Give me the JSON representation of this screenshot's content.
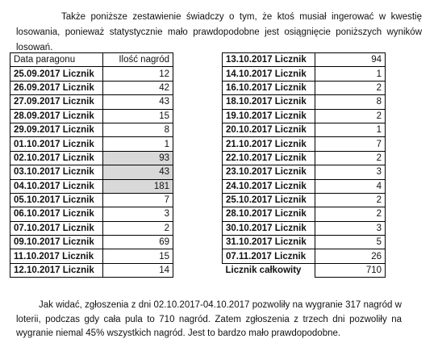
{
  "intro": "Także poniższe zestawienie świadczy o tym, że ktoś musiał ingerować w kwestię losowania, ponieważ statystycznie mało prawdopodobne jest osiągnięcie poniższych wyników losowań.",
  "conclusion": "Jak widać, zgłoszenia z dni 02.10.2017-04.10.2017 pozwoliły na wygranie 317 nagród w loterii, podczas gdy cała pula to 710 nagród. Zatem zgłoszenia z trzech dni pozwoliły na wygranie niemal 45% wszystkich nagród. Jest to bardzo mało prawdopodobne.",
  "tables": [
    {
      "header": [
        "Data paragonu",
        "Ilość nagród"
      ],
      "rows": [
        [
          "25.09.2017 Licznik",
          12
        ],
        [
          "26.09.2017 Licznik",
          42
        ],
        [
          "27.09.2017 Licznik",
          43
        ],
        [
          "28.09.2017 Licznik",
          15
        ],
        [
          "29.09.2017 Licznik",
          8
        ],
        [
          "01.10.2017 Licznik",
          1
        ],
        [
          "02.10.2017 Licznik",
          93
        ],
        [
          "03.10.2017 Licznik",
          43
        ],
        [
          "04.10.2017 Licznik",
          181
        ],
        [
          "05.10.2017 Licznik",
          7
        ],
        [
          "06.10.2017 Licznik",
          3
        ],
        [
          "07.10.2017 Licznik",
          2
        ],
        [
          "09.10.2017 Licznik",
          69
        ],
        [
          "11.10.2017 Licznik",
          15
        ],
        [
          "12.10.2017 Licznik",
          14
        ]
      ]
    },
    {
      "rows": [
        [
          "13.10.2017 Licznik",
          94
        ],
        [
          "14.10.2017 Licznik",
          1
        ],
        [
          "16.10.2017 Licznik",
          2
        ],
        [
          "18.10.2017 Licznik",
          8
        ],
        [
          "19.10.2017 Licznik",
          2
        ],
        [
          "20.10.2017 Licznik",
          1
        ],
        [
          "21.10.2017 Licznik",
          7
        ],
        [
          "22.10.2017 Licznik",
          2
        ],
        [
          "23.10.2017 Licznik",
          3
        ],
        [
          "24.10.2017 Licznik",
          4
        ],
        [
          "25.10.2017 Licznik",
          2
        ],
        [
          "28.10.2017 Licznik",
          2
        ],
        [
          "30.10.2017 Licznik",
          3
        ],
        [
          "31.10.2017 Licznik",
          5
        ],
        [
          "07.11.2017 Licznik",
          26
        ],
        [
          "Licznik całkowity",
          710
        ]
      ]
    }
  ]
}
